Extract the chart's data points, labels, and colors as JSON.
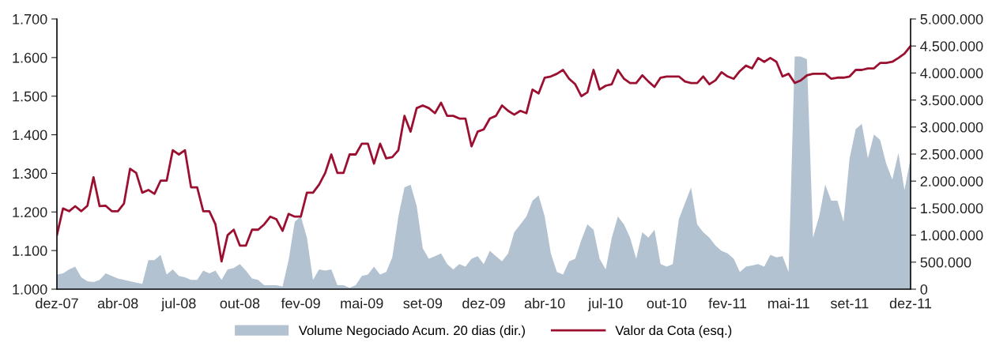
{
  "chart_data": {
    "type": "line",
    "categories": [
      "dez-07",
      null,
      null,
      null,
      null,
      null,
      null,
      null,
      null,
      null,
      "abr-08",
      null,
      null,
      null,
      null,
      null,
      null,
      null,
      null,
      null,
      "jul-08",
      null,
      null,
      null,
      null,
      null,
      null,
      null,
      null,
      null,
      "out-08",
      null,
      null,
      null,
      null,
      null,
      null,
      null,
      null,
      null,
      "fev-09",
      null,
      null,
      null,
      null,
      null,
      null,
      null,
      null,
      null,
      "mai-09",
      null,
      null,
      null,
      null,
      null,
      null,
      null,
      null,
      null,
      "set-09",
      null,
      null,
      null,
      null,
      null,
      null,
      null,
      null,
      null,
      "dez-09",
      null,
      null,
      null,
      null,
      null,
      null,
      null,
      null,
      null,
      "abr-10",
      null,
      null,
      null,
      null,
      null,
      null,
      null,
      null,
      null,
      "jul-10",
      null,
      null,
      null,
      null,
      null,
      null,
      null,
      null,
      null,
      "out-10",
      null,
      null,
      null,
      null,
      null,
      null,
      null,
      null,
      null,
      "fev-11",
      null,
      null,
      null,
      null,
      null,
      null,
      null,
      null,
      null,
      "mai-11",
      null,
      null,
      null,
      null,
      null,
      null,
      null,
      null,
      null,
      "set-11",
      null,
      null,
      null,
      null,
      null,
      null,
      null,
      null,
      null,
      "dez-11"
    ],
    "series": [
      {
        "name": "Volume Negociado Acum. 20 dias (dir.)",
        "type": "area",
        "axis": "y2",
        "color": "#b3c2d1",
        "values": [
          269000,
          294000,
          367000,
          416000,
          220000,
          147000,
          132000,
          171000,
          294000,
          245000,
          196000,
          171000,
          147000,
          122000,
          98000,
          538000,
          538000,
          636000,
          269000,
          367000,
          245000,
          220000,
          171000,
          171000,
          342000,
          294000,
          342000,
          171000,
          367000,
          391000,
          465000,
          342000,
          196000,
          171000,
          73000,
          73000,
          73000,
          49000,
          538000,
          1247000,
          1345000,
          954000,
          171000,
          367000,
          342000,
          367000,
          73000,
          73000,
          24000,
          73000,
          245000,
          269000,
          416000,
          269000,
          318000,
          587000,
          1345000,
          1883000,
          1932000,
          1541000,
          758000,
          563000,
          611000,
          660000,
          465000,
          367000,
          465000,
          416000,
          563000,
          611000,
          465000,
          709000,
          611000,
          514000,
          660000,
          1052000,
          1199000,
          1345000,
          1639000,
          1737000,
          1345000,
          660000,
          318000,
          269000,
          514000,
          563000,
          905000,
          1199000,
          1101000,
          563000,
          367000,
          954000,
          1345000,
          1199000,
          954000,
          563000,
          1052000,
          954000,
          1101000,
          465000,
          416000,
          465000,
          1296000,
          1590000,
          1883000,
          1199000,
          1052000,
          954000,
          807000,
          709000,
          660000,
          563000,
          318000,
          416000,
          440000,
          465000,
          416000,
          636000,
          587000,
          611000,
          318000,
          4305000,
          4305000,
          4256000,
          954000,
          1345000,
          1932000,
          1639000,
          1639000,
          1247000,
          2422000,
          2960000,
          3058000,
          2422000,
          2862000,
          2764000,
          2324000,
          2030000,
          2520000,
          1834000,
          2422000
        ]
      },
      {
        "name": "Valor da Cota (esq.)",
        "color": "#9b1030",
        "values": [
          1140,
          1209,
          1202,
          1215,
          1202,
          1216,
          1290,
          1215,
          1216,
          1202,
          1202,
          1222,
          1312,
          1301,
          1250,
          1257,
          1247,
          1281,
          1281,
          1360,
          1349,
          1360,
          1264,
          1264,
          1202,
          1202,
          1168,
          1072,
          1140,
          1154,
          1113,
          1113,
          1154,
          1154,
          1168,
          1188,
          1181,
          1151,
          1195,
          1188,
          1188,
          1250,
          1250,
          1271,
          1301,
          1349,
          1301,
          1301,
          1349,
          1349,
          1377,
          1377,
          1325,
          1377,
          1339,
          1342,
          1360,
          1449,
          1408,
          1469,
          1476,
          1469,
          1456,
          1483,
          1449,
          1449,
          1442,
          1442,
          1370,
          1408,
          1414,
          1442,
          1449,
          1476,
          1462,
          1452,
          1462,
          1456,
          1517,
          1507,
          1548,
          1551,
          1558,
          1568,
          1545,
          1531,
          1500,
          1510,
          1568,
          1517,
          1527,
          1531,
          1568,
          1545,
          1534,
          1534,
          1554,
          1538,
          1524,
          1548,
          1551,
          1551,
          1551,
          1538,
          1534,
          1534,
          1551,
          1531,
          1541,
          1562,
          1551,
          1545,
          1565,
          1579,
          1572,
          1599,
          1589,
          1599,
          1589,
          1551,
          1558,
          1534,
          1541,
          1554,
          1558,
          1558,
          1558,
          1545,
          1548,
          1548,
          1551,
          1568,
          1568,
          1572,
          1572,
          1586,
          1586,
          1589,
          1599,
          1610,
          1630
        ]
      }
    ],
    "ylim": [
      1000,
      1700
    ],
    "yticks": [
      {
        "value": 1000,
        "label": "1.000"
      },
      {
        "value": 1100,
        "label": "1.100"
      },
      {
        "value": 1200,
        "label": "1.200"
      },
      {
        "value": 1300,
        "label": "1.300"
      },
      {
        "value": 1400,
        "label": "1.400"
      },
      {
        "value": 1500,
        "label": "1.500"
      },
      {
        "value": 1600,
        "label": "1.600"
      },
      {
        "value": 1700,
        "label": "1.700"
      }
    ],
    "y2lim": [
      0,
      5000000
    ],
    "y2ticks": [
      0,
      {
        "value": 500000,
        "label": "500.000"
      },
      {
        "value": 1000000,
        "label": "1.000.000"
      },
      {
        "value": 1500000,
        "label": "1.500.000"
      },
      {
        "value": 2000000,
        "label": "2.000.000"
      },
      {
        "value": 2500000,
        "label": "2.500.000"
      },
      {
        "value": 3000000,
        "label": "3.000.000"
      },
      {
        "value": 3500000,
        "label": "3.500.000"
      },
      {
        "value": 4000000,
        "label": "4.000.000"
      },
      {
        "value": 4500000,
        "label": "4.500.000"
      },
      {
        "value": 5000000,
        "label": "5.000.000"
      }
    ],
    "grid": false,
    "legend": "bottom",
    "line_style": "solid",
    "marker": "none"
  }
}
